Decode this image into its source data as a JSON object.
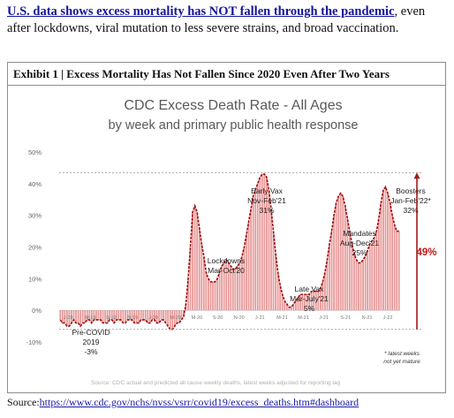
{
  "headline": {
    "bold_link": "U.S. data shows excess mortality has NOT fallen through the pandemic",
    "rest": ", even after lockdowns, viral mutation to less severe strains, and broad vaccination."
  },
  "exhibit": {
    "title": "Exhibit 1 | Excess Mortality Has Not Fallen Since 2020 Even After Two Years"
  },
  "chart_data": {
    "type": "bar",
    "title": "CDC Excess Death Rate - All Ages",
    "subtitle": "by week and primary public health response",
    "ylim": [
      -10,
      50
    ],
    "yticks": [
      {
        "value": -10,
        "label": "-10%"
      },
      {
        "value": 0,
        "label": "0%"
      },
      {
        "value": 10,
        "label": "10%"
      },
      {
        "value": 20,
        "label": "20%"
      },
      {
        "value": 30,
        "label": "30%"
      },
      {
        "value": 40,
        "label": "40%"
      },
      {
        "value": 50,
        "label": "50%"
      }
    ],
    "xticks": [
      "J-19",
      "M-19",
      "S-19",
      "N-19",
      "J-20",
      "M-20",
      "M-20",
      "S-20",
      "N-20",
      "J-21",
      "M-21",
      "M-21",
      "J-21",
      "S-21",
      "N-21",
      "J-22"
    ],
    "reference_lines": [
      {
        "value": 43.5,
        "color": "#a0a0a0"
      },
      {
        "value": -6,
        "color": "#a0a0a0"
      }
    ],
    "weekly_values": [
      -3,
      -4,
      -4,
      -5,
      -5,
      -4,
      -3,
      -4,
      -4,
      -5,
      -4,
      -4,
      -3,
      -3,
      -4,
      -3,
      -3,
      -3,
      -3,
      -4,
      -4,
      -4,
      -3,
      -3,
      -4,
      -3,
      -3,
      -3,
      -4,
      -4,
      -3,
      -3,
      -3,
      -4,
      -4,
      -4,
      -3,
      -3,
      -3,
      -4,
      -4,
      -3,
      -3,
      -4,
      -4,
      -3,
      -3,
      -4,
      -5,
      -6,
      -6,
      -5,
      -4,
      -4,
      -3,
      -2,
      2,
      10,
      20,
      31,
      33,
      31,
      26,
      21,
      17,
      12,
      10,
      9,
      9,
      9,
      10,
      12,
      14,
      15,
      16,
      15,
      14,
      13,
      13,
      14,
      15,
      17,
      20,
      24,
      28,
      32,
      36,
      38,
      40,
      42,
      43,
      43,
      42,
      38,
      32,
      25,
      18,
      12,
      8,
      5,
      3,
      2,
      1,
      1,
      2,
      3,
      4,
      5,
      5,
      5,
      5,
      5,
      6,
      6,
      6,
      6,
      7,
      9,
      12,
      16,
      21,
      25,
      30,
      34,
      36,
      37,
      36,
      33,
      29,
      25,
      21,
      18,
      16,
      15,
      15,
      16,
      17,
      19,
      21,
      22,
      23,
      25,
      29,
      34,
      38,
      39,
      37,
      34,
      30,
      27,
      25,
      25
    ],
    "vax_line_color": "#a11a1a",
    "bar_color": "#e07575",
    "annotations": [
      {
        "id": "pre-covid",
        "lines": [
          "Pre-COVID",
          "2019",
          "-3%"
        ]
      },
      {
        "id": "lockdowns",
        "lines": [
          "Lockdowns",
          "Mar-Oct'20"
        ]
      },
      {
        "id": "early-vax",
        "lines": [
          "Early Vax",
          "Nov-Feb'21",
          "31%"
        ]
      },
      {
        "id": "late-vax",
        "lines": [
          "Late Vax",
          "Mar-July'21",
          "5%"
        ]
      },
      {
        "id": "mandates",
        "lines": [
          "Mandates",
          "Aug-Dec'21",
          "25%"
        ]
      },
      {
        "id": "boosters",
        "lines": [
          "Boosters",
          "Jan-Feb'22*",
          "32%"
        ]
      }
    ],
    "change_label": "49%",
    "footnote_lines": [
      "* latest weeks",
      "not yet mature"
    ],
    "source_note": "Source: CDC actual and predicted all cause weekly deaths, latest weeks adjusted for reporting lag"
  },
  "source": {
    "label": "Source:",
    "url": "https://www.cdc.gov/nchs/nvss/vsrr/covid19/excess_deaths.htm#dashboard"
  },
  "colors": {
    "headline_link": "#14149a",
    "accent_red": "#c01818",
    "bars": "#e07575"
  }
}
